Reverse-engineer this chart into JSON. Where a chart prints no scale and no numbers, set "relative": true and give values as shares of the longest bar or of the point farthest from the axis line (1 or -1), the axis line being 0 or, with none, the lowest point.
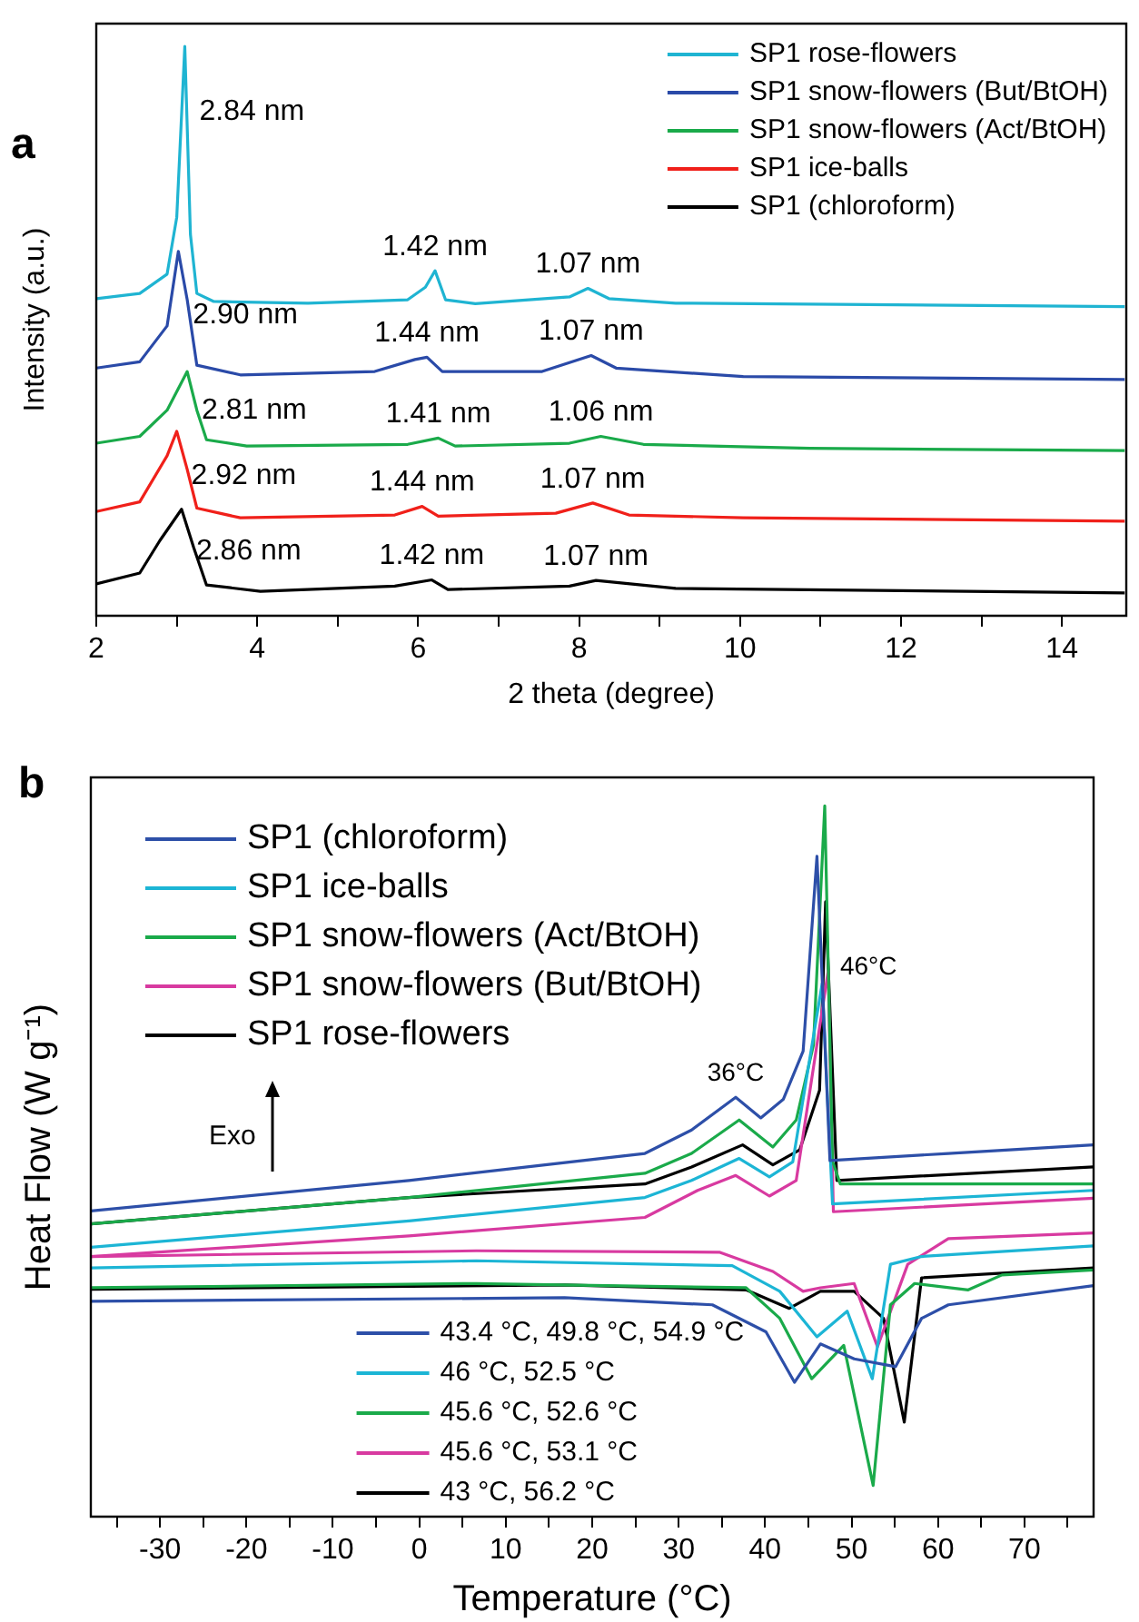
{
  "chart_data": [
    {
      "type": "line",
      "title": "a",
      "xlabel": "2 theta (degree)",
      "ylabel": "Intensity (a.u.)",
      "relative": true,
      "legend": "top right",
      "xlim": [
        2,
        14.8
      ],
      "xticks": [
        2,
        {
          "value": 3,
          "label": null
        },
        4,
        {
          "value": 5,
          "label": null
        },
        6,
        {
          "value": 7,
          "label": null
        },
        8,
        {
          "value": 9,
          "label": null
        },
        10,
        {
          "value": 11,
          "label": null
        },
        12,
        {
          "value": 13,
          "label": null
        },
        14
      ],
      "series": [
        {
          "name": "SP1 rose-flowers",
          "color": "#1fb4d2",
          "x": [
            2,
            2.54,
            2.88,
            3.0,
            3.1,
            3.17,
            3.25,
            3.46,
            4.63,
            5.87,
            6.09,
            6.21,
            6.34,
            6.71,
            7.88,
            8.11,
            8.37,
            9.2,
            14.78
          ],
          "values": [
            0.557,
            0.566,
            0.6,
            0.7,
            1.0,
            0.67,
            0.566,
            0.552,
            0.549,
            0.555,
            0.577,
            0.606,
            0.555,
            0.548,
            0.56,
            0.575,
            0.557,
            0.549,
            0.543
          ]
        },
        {
          "name": "SP1 snow-flowers (But/BtOH)",
          "color": "#2a4aa8",
          "x": [
            2,
            2.54,
            2.88,
            3.02,
            3.13,
            3.25,
            3.79,
            5.46,
            5.96,
            6.11,
            6.3,
            7.54,
            8.15,
            8.46,
            10.04,
            14.78
          ],
          "values": [
            0.435,
            0.446,
            0.509,
            0.64,
            0.555,
            0.44,
            0.423,
            0.429,
            0.45,
            0.454,
            0.429,
            0.429,
            0.457,
            0.435,
            0.42,
            0.415
          ]
        },
        {
          "name": "SP1 snow-flowers (Act/BtOH)",
          "color": "#1aaa4a",
          "x": [
            2,
            2.54,
            2.88,
            3.13,
            3.25,
            3.37,
            3.87,
            5.87,
            6.25,
            6.46,
            7.88,
            8.27,
            8.8,
            10.87,
            14.78
          ],
          "values": [
            0.303,
            0.315,
            0.361,
            0.429,
            0.361,
            0.309,
            0.298,
            0.301,
            0.312,
            0.298,
            0.303,
            0.315,
            0.301,
            0.294,
            0.29
          ]
        },
        {
          "name": "SP1 ice-balls",
          "color": "#f0201a",
          "x": [
            2,
            2.54,
            2.88,
            3.0,
            3.13,
            3.25,
            3.79,
            5.71,
            6.05,
            6.25,
            7.71,
            8.17,
            8.62,
            10.04,
            14.78
          ],
          "values": [
            0.183,
            0.2,
            0.281,
            0.324,
            0.257,
            0.189,
            0.172,
            0.177,
            0.192,
            0.175,
            0.18,
            0.198,
            0.177,
            0.172,
            0.166
          ]
        },
        {
          "name": "SP1 (chloroform)",
          "color": "#000000",
          "x": [
            2,
            2.54,
            2.79,
            3.06,
            3.21,
            3.37,
            4.04,
            5.71,
            6.17,
            6.37,
            7.88,
            8.21,
            9.2,
            14.78
          ],
          "values": [
            0.056,
            0.075,
            0.132,
            0.187,
            0.12,
            0.054,
            0.043,
            0.052,
            0.063,
            0.046,
            0.052,
            0.062,
            0.048,
            0.04
          ]
        }
      ],
      "annotations": [
        {
          "text": "2.84 nm",
          "x": 3.1,
          "y": 1.0
        },
        {
          "text": "1.42 nm",
          "x": 6.21,
          "y": 0.606
        },
        {
          "text": "1.07 nm",
          "x": 8.11,
          "y": 0.575
        },
        {
          "text": "2.90 nm",
          "x": 3.02,
          "y": 0.64
        },
        {
          "text": "1.44 nm",
          "x": 6.11,
          "y": 0.454
        },
        {
          "text": "1.07 nm",
          "x": 8.15,
          "y": 0.457
        },
        {
          "text": "2.81 nm",
          "x": 3.13,
          "y": 0.429
        },
        {
          "text": "1.41 nm",
          "x": 6.25,
          "y": 0.312
        },
        {
          "text": "1.06 nm",
          "x": 8.27,
          "y": 0.315
        },
        {
          "text": "2.92 nm",
          "x": 3.0,
          "y": 0.324
        },
        {
          "text": "1.44 nm",
          "x": 6.05,
          "y": 0.192
        },
        {
          "text": "1.07 nm",
          "x": 8.17,
          "y": 0.198
        },
        {
          "text": "2.86 nm",
          "x": 3.06,
          "y": 0.187
        },
        {
          "text": "1.42 nm",
          "x": 6.17,
          "y": 0.063
        },
        {
          "text": "1.07 nm",
          "x": 8.21,
          "y": 0.062
        }
      ]
    },
    {
      "type": "line",
      "title": "b",
      "xlabel": "Temperature (°C)",
      "ylabel": "Heat Flow (W g⁻¹)",
      "relative": true,
      "legend": "left",
      "xlim": [
        -38,
        78
      ],
      "xticks": [
        {
          "value": -35,
          "label": null
        },
        -30,
        {
          "value": -25,
          "label": null
        },
        -20,
        {
          "value": -15,
          "label": null
        },
        -10,
        {
          "value": -5,
          "label": null
        },
        0,
        {
          "value": 5,
          "label": null
        },
        10,
        {
          "value": 15,
          "label": null
        },
        20,
        {
          "value": 25,
          "label": null
        },
        30,
        {
          "value": 35,
          "label": null
        },
        40,
        {
          "value": 45,
          "label": null
        },
        50,
        {
          "value": 55,
          "label": null
        },
        60,
        {
          "value": 65,
          "label": null
        },
        70,
        {
          "value": 75,
          "label": null
        }
      ],
      "series": [
        {
          "name": "SP1 (chloroform)",
          "color": "#2d4fa8",
          "x": [
            -38,
            -1.2,
            26.1,
            31.5,
            36.6,
            39.5,
            42.1,
            44.4,
            46.0,
            47.5,
            61.2,
            78
          ],
          "values": [
            0.43,
            0.473,
            0.511,
            0.544,
            0.59,
            0.561,
            0.587,
            0.655,
            0.929,
            0.501,
            0.511,
            0.523
          ]
        },
        {
          "name": "SP1 ice-balls",
          "color": "#1cb5d5",
          "x": [
            -38,
            -1.2,
            26.1,
            31.5,
            37.0,
            40.5,
            43.2,
            46.6,
            47.8,
            78
          ],
          "values": [
            0.379,
            0.416,
            0.449,
            0.473,
            0.504,
            0.478,
            0.499,
            0.75,
            0.44,
            0.459
          ]
        },
        {
          "name": "SP1 snow-flowers (Act/BtOH)",
          "color": "#1aaa4a",
          "x": [
            -38,
            -1.2,
            26.1,
            31.5,
            37.0,
            40.9,
            43.6,
            45.6,
            46.9,
            47.8,
            48.7,
            78
          ],
          "values": [
            0.412,
            0.449,
            0.483,
            0.511,
            0.558,
            0.52,
            0.558,
            0.664,
            1.0,
            0.5,
            0.468,
            0.468
          ]
        },
        {
          "name": "SP1 snow-flowers (But/BtOH)",
          "color": "#d83aa0",
          "x": [
            -38,
            -1.2,
            26.1,
            32.2,
            36.6,
            40.5,
            43.6,
            47.3,
            47.9,
            78
          ],
          "values": [
            0.366,
            0.395,
            0.421,
            0.459,
            0.48,
            0.451,
            0.473,
            0.768,
            0.429,
            0.448
          ]
        },
        {
          "name": "SP1 rose-flowers",
          "color": "#000000",
          "x": [
            -38,
            -1.2,
            26.1,
            31.5,
            37.4,
            40.9,
            44.0,
            46.3,
            47.0,
            48.3,
            78
          ],
          "values": [
            0.412,
            0.449,
            0.468,
            0.492,
            0.523,
            0.495,
            0.516,
            0.6,
            0.865,
            0.473,
            0.492
          ]
        },
        {
          "name": "43.4 °C, 49.8 °C, 54.9 °C",
          "color": "#2d4fa8",
          "x": [
            -38,
            16.8,
            33.9,
            40.1,
            43.4,
            46.4,
            50.3,
            55.1,
            58.1,
            61.2,
            78
          ],
          "values": [
            0.303,
            0.308,
            0.298,
            0.26,
            0.189,
            0.243,
            0.222,
            0.211,
            0.279,
            0.298,
            0.325
          ]
        },
        {
          "name": "46 °C, 52.5 °C",
          "color": "#1cb5d5",
          "x": [
            -38,
            6.6,
            36.2,
            41.7,
            46.0,
            49.5,
            52.4,
            54.5,
            58.1,
            78
          ],
          "values": [
            0.35,
            0.36,
            0.353,
            0.317,
            0.253,
            0.289,
            0.194,
            0.355,
            0.366,
            0.381
          ]
        },
        {
          "name": "45.6 °C, 52.6 °C",
          "color": "#1aaa4a",
          "x": [
            -38,
            6.6,
            37.8,
            41.7,
            45.4,
            49.1,
            52.5,
            54.5,
            57.3,
            63.5,
            67.4,
            78
          ],
          "values": [
            0.322,
            0.328,
            0.322,
            0.279,
            0.194,
            0.241,
            0.044,
            0.298,
            0.328,
            0.319,
            0.34,
            0.347
          ]
        },
        {
          "name": "45.6 °C, 53.1 °C",
          "color": "#d83aa0",
          "x": [
            -38,
            6.6,
            34.7,
            40.9,
            44.4,
            46.4,
            50.3,
            53.0,
            56.5,
            61.2,
            78
          ],
          "values": [
            0.366,
            0.374,
            0.372,
            0.345,
            0.317,
            0.322,
            0.328,
            0.239,
            0.355,
            0.391,
            0.399
          ]
        },
        {
          "name": "43 °C, 56.2 °C",
          "color": "#000000",
          "x": [
            -38,
            16.8,
            37.8,
            42.8,
            46.4,
            50.3,
            53.7,
            56.1,
            58.1,
            78
          ],
          "values": [
            0.32,
            0.326,
            0.319,
            0.293,
            0.317,
            0.317,
            0.279,
            0.133,
            0.336,
            0.35
          ]
        }
      ],
      "annotations": [
        {
          "text": "36°C",
          "x": 36.6,
          "y": 0.59
        },
        {
          "text": "46°C",
          "x": 47.0,
          "y": 0.865
        },
        "Exo"
      ]
    }
  ]
}
